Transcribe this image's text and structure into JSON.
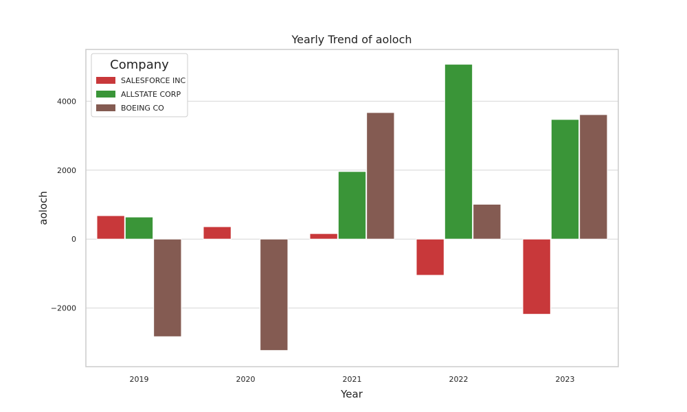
{
  "chart_data": {
    "type": "bar",
    "title": "Yearly Trend of aoloch",
    "xlabel": "Year",
    "ylabel": "aoloch",
    "categories": [
      "2019",
      "2020",
      "2021",
      "2022",
      "2023"
    ],
    "ylim": [
      -3700,
      5500
    ],
    "yticks": [
      -2000,
      0,
      2000,
      4000
    ],
    "ytick_labels": [
      "−2000",
      "0",
      "2000",
      "4000"
    ],
    "grid": true,
    "legend": {
      "title": "Company",
      "placement": "top-left"
    },
    "series": [
      {
        "name": "SALESFORCE INC",
        "color": "#c8383a",
        "values": [
          680,
          360,
          160,
          -1050,
          -2180
        ]
      },
      {
        "name": "ALLSTATE CORP",
        "color": "#3a9538",
        "values": [
          640,
          0,
          1960,
          5070,
          3470
        ]
      },
      {
        "name": "BOEING CO",
        "color": "#845b52",
        "values": [
          -2830,
          -3230,
          3670,
          1010,
          3610
        ]
      }
    ]
  }
}
